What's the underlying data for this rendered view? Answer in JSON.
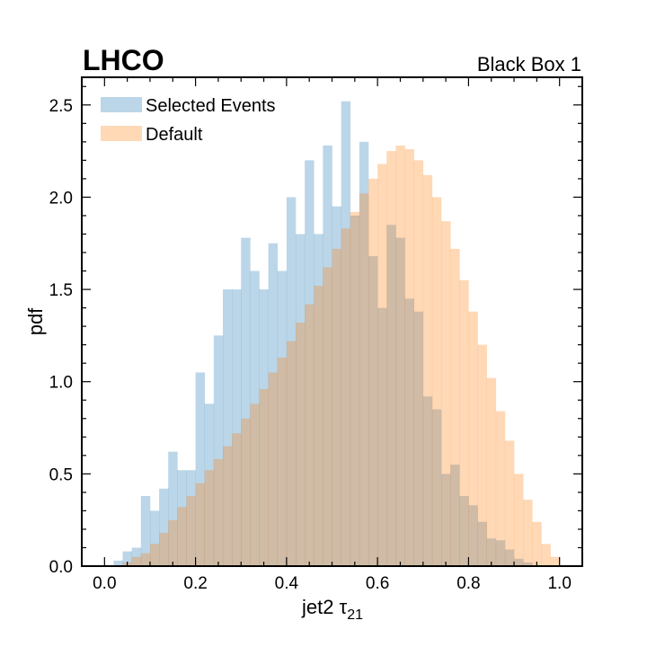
{
  "chart_data": {
    "type": "bar",
    "subtype": "overlaid-histogram",
    "experiment_label": "LHCO",
    "right_label": "Black Box 1",
    "xlabel_main": "jet2 τ",
    "xlabel_sub": "21",
    "ylabel": "pdf",
    "xlim": [
      -0.05,
      1.05
    ],
    "ylim": [
      0.0,
      2.65
    ],
    "xticks": [
      "0.0",
      "0.2",
      "0.4",
      "0.6",
      "0.8",
      "1.0"
    ],
    "yticks": [
      "0.0",
      "0.5",
      "1.0",
      "1.5",
      "2.0",
      "2.5"
    ],
    "grid": false,
    "legend_position": "top-left",
    "bin_edges": [
      0.0,
      0.02,
      0.04,
      0.06,
      0.08,
      0.1,
      0.12,
      0.14,
      0.16,
      0.18,
      0.2,
      0.22,
      0.24,
      0.26,
      0.28,
      0.3,
      0.32,
      0.34,
      0.36,
      0.38,
      0.4,
      0.42,
      0.44,
      0.46,
      0.48,
      0.5,
      0.52,
      0.54,
      0.56,
      0.58,
      0.6,
      0.62,
      0.64,
      0.66,
      0.68,
      0.7,
      0.72,
      0.74,
      0.76,
      0.78,
      0.8,
      0.82,
      0.84,
      0.86,
      0.88,
      0.9,
      0.92,
      0.94,
      0.96,
      0.98,
      1.0
    ],
    "series": [
      {
        "name": "Selected Events",
        "color": "#1f77b4",
        "alpha": 0.3,
        "values": [
          0.0,
          0.03,
          0.08,
          0.1,
          0.38,
          0.3,
          0.42,
          0.62,
          0.52,
          0.52,
          1.05,
          0.88,
          1.25,
          1.5,
          1.5,
          1.78,
          1.6,
          1.5,
          1.75,
          1.6,
          2.0,
          1.8,
          2.2,
          1.8,
          2.28,
          1.95,
          2.52,
          1.9,
          2.3,
          1.68,
          1.4,
          1.85,
          1.78,
          1.45,
          1.38,
          0.92,
          0.85,
          0.5,
          0.55,
          0.38,
          0.33,
          0.24,
          0.15,
          0.14,
          0.09,
          0.04,
          0.02,
          0.0,
          0.0,
          0.0
        ]
      },
      {
        "name": "Default",
        "color": "#ff7f0e",
        "alpha": 0.3,
        "values": [
          0.0,
          0.0,
          0.02,
          0.05,
          0.07,
          0.12,
          0.18,
          0.25,
          0.32,
          0.38,
          0.45,
          0.52,
          0.58,
          0.65,
          0.72,
          0.8,
          0.88,
          0.96,
          1.05,
          1.13,
          1.22,
          1.32,
          1.42,
          1.52,
          1.62,
          1.72,
          1.83,
          1.92,
          2.02,
          2.1,
          2.18,
          2.25,
          2.28,
          2.26,
          2.2,
          2.12,
          2.0,
          1.87,
          1.72,
          1.55,
          1.38,
          1.2,
          1.02,
          0.84,
          0.68,
          0.5,
          0.36,
          0.24,
          0.12,
          0.05
        ]
      }
    ]
  }
}
